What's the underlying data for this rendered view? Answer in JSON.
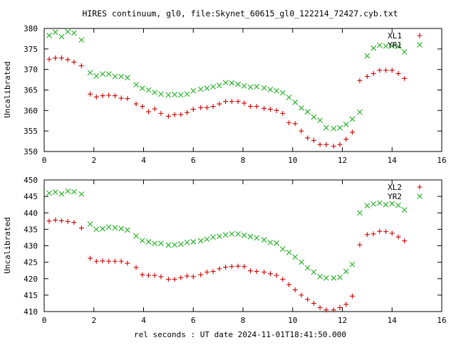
{
  "chart_data": {
    "title": "HIRES continuum, gl0, file:Skynet_60615_gl0_122214_72427.cyb.txt",
    "xlabel": "rel seconds : UT date 2024-11-01T18:41:50.000",
    "panels": [
      {
        "type": "scatter",
        "ylabel": "Uncalibrated",
        "xlim": [
          0,
          16
        ],
        "ylim": [
          350,
          380
        ],
        "xticks": [
          "0",
          "2",
          "4",
          "6",
          "8",
          "10",
          "12",
          "14",
          "16"
        ],
        "yticks": [
          "350",
          "355",
          "360",
          "365",
          "370",
          "375",
          "380"
        ],
        "legend_position": "top-right",
        "series": [
          {
            "name": "XL1",
            "marker": "plus",
            "color": "#d00000",
            "x": [
              0.2,
              0.45,
              0.7,
              0.95,
              1.2,
              1.5,
              1.85,
              2.1,
              2.35,
              2.6,
              2.85,
              3.1,
              3.35,
              3.7,
              3.95,
              4.2,
              4.45,
              4.7,
              5.0,
              5.25,
              5.5,
              5.75,
              6.0,
              6.3,
              6.55,
              6.8,
              7.05,
              7.3,
              7.55,
              7.8,
              8.05,
              8.3,
              8.55,
              8.85,
              9.1,
              9.35,
              9.6,
              9.85,
              10.1,
              10.35,
              10.6,
              10.85,
              11.1,
              11.35,
              11.65,
              11.9,
              12.15,
              12.4,
              12.7,
              13.0,
              13.25,
              13.5,
              13.75,
              14.0,
              14.25,
              14.5
            ],
            "y": [
              372.5,
              372.8,
              372.8,
              372.4,
              371.8,
              370.9,
              364.0,
              363.3,
              363.6,
              363.7,
              363.6,
              363.0,
              362.9,
              361.6,
              361.0,
              359.7,
              360.4,
              359.3,
              358.6,
              359.0,
              359.0,
              359.5,
              360.3,
              360.7,
              360.7,
              361.0,
              361.6,
              362.2,
              362.2,
              362.2,
              361.8,
              361.0,
              361.0,
              360.5,
              360.3,
              360.0,
              359.3,
              357.0,
              356.8,
              355.0,
              353.3,
              352.7,
              351.7,
              351.7,
              351.3,
              351.7,
              353.0,
              354.7,
              367.3,
              368.3,
              369.0,
              369.8,
              369.8,
              369.8,
              369.0,
              367.8
            ]
          },
          {
            "name": "YR1",
            "marker": "x",
            "color": "#20b020",
            "x": [
              0.2,
              0.45,
              0.7,
              0.95,
              1.2,
              1.5,
              1.85,
              2.1,
              2.35,
              2.6,
              2.85,
              3.1,
              3.35,
              3.7,
              3.95,
              4.2,
              4.45,
              4.7,
              5.0,
              5.25,
              5.5,
              5.75,
              6.0,
              6.3,
              6.55,
              6.8,
              7.05,
              7.3,
              7.55,
              7.8,
              8.05,
              8.3,
              8.55,
              8.85,
              9.1,
              9.35,
              9.6,
              9.85,
              10.1,
              10.35,
              10.6,
              10.85,
              11.1,
              11.35,
              11.65,
              11.9,
              12.15,
              12.4,
              12.7,
              13.0,
              13.25,
              13.5,
              13.75,
              14.0,
              14.25,
              14.5
            ],
            "y": [
              378.3,
              379.1,
              378.0,
              379.2,
              378.9,
              377.2,
              369.2,
              368.4,
              368.9,
              368.9,
              368.3,
              368.3,
              368.0,
              366.3,
              365.4,
              365.0,
              364.4,
              364.0,
              363.8,
              363.9,
              363.8,
              364.0,
              364.8,
              365.2,
              365.4,
              365.8,
              366.1,
              366.8,
              366.7,
              366.4,
              366.0,
              365.7,
              365.8,
              365.5,
              365.1,
              364.8,
              364.3,
              363.2,
              362.0,
              360.6,
              359.7,
              358.4,
              357.6,
              355.8,
              355.6,
              355.8,
              356.6,
              357.9,
              359.6,
              373.3,
              375.2,
              375.9,
              375.7,
              375.7,
              375.6,
              374.3
            ]
          }
        ]
      },
      {
        "type": "scatter",
        "ylabel": "Uncalibrated",
        "xlim": [
          0,
          16
        ],
        "ylim": [
          410,
          450
        ],
        "xticks": [
          "0",
          "2",
          "4",
          "6",
          "8",
          "10",
          "12",
          "14",
          "16"
        ],
        "yticks": [
          "410",
          "415",
          "420",
          "425",
          "430",
          "435",
          "440",
          "445",
          "450"
        ],
        "legend_position": "top-right",
        "series": [
          {
            "name": "XL2",
            "marker": "plus",
            "color": "#d00000",
            "x": [
              0.2,
              0.45,
              0.7,
              0.95,
              1.2,
              1.5,
              1.85,
              2.1,
              2.35,
              2.6,
              2.85,
              3.1,
              3.35,
              3.7,
              3.95,
              4.2,
              4.45,
              4.7,
              5.0,
              5.25,
              5.5,
              5.75,
              6.0,
              6.3,
              6.55,
              6.8,
              7.05,
              7.3,
              7.55,
              7.8,
              8.05,
              8.3,
              8.55,
              8.85,
              9.1,
              9.35,
              9.6,
              9.85,
              10.1,
              10.35,
              10.6,
              10.85,
              11.1,
              11.35,
              11.65,
              11.9,
              12.15,
              12.4,
              12.7,
              13.0,
              13.25,
              13.5,
              13.75,
              14.0,
              14.25,
              14.5
            ],
            "y": [
              437.5,
              437.8,
              437.6,
              437.4,
              437.1,
              435.4,
              426.2,
              425.3,
              425.4,
              425.3,
              425.3,
              425.3,
              424.7,
              423.4,
              421.2,
              421.0,
              421.0,
              420.6,
              419.8,
              419.8,
              420.3,
              420.8,
              420.6,
              421.2,
              422.0,
              422.2,
              423.0,
              423.5,
              423.7,
              423.8,
              423.7,
              422.4,
              422.2,
              422.0,
              421.5,
              421.0,
              419.8,
              418.2,
              416.6,
              415.0,
              413.7,
              412.5,
              411.2,
              410.5,
              410.5,
              411.2,
              412.2,
              414.7,
              430.3,
              433.4,
              433.6,
              434.4,
              434.3,
              433.8,
              432.7,
              431.5
            ]
          },
          {
            "name": "YR2",
            "marker": "x",
            "color": "#20b020",
            "x": [
              0.2,
              0.45,
              0.7,
              0.95,
              1.2,
              1.5,
              1.85,
              2.1,
              2.35,
              2.6,
              2.85,
              3.1,
              3.35,
              3.7,
              3.95,
              4.2,
              4.45,
              4.7,
              5.0,
              5.25,
              5.5,
              5.75,
              6.0,
              6.3,
              6.55,
              6.8,
              7.05,
              7.3,
              7.55,
              7.8,
              8.05,
              8.3,
              8.55,
              8.85,
              9.1,
              9.35,
              9.6,
              9.85,
              10.1,
              10.35,
              10.6,
              10.85,
              11.1,
              11.35,
              11.65,
              11.9,
              12.15,
              12.4,
              12.7,
              13.0,
              13.25,
              13.5,
              13.75,
              14.0,
              14.25,
              14.5
            ],
            "y": [
              446.0,
              446.3,
              445.8,
              446.6,
              446.4,
              445.7,
              436.6,
              435.0,
              435.2,
              435.7,
              435.5,
              435.2,
              434.8,
              433.0,
              431.6,
              431.2,
              430.7,
              430.7,
              430.2,
              430.3,
              430.5,
              431.0,
              431.2,
              431.5,
              432.0,
              432.6,
              432.9,
              433.3,
              433.6,
              433.6,
              433.2,
              432.8,
              432.4,
              431.8,
              431.0,
              430.8,
              429.0,
              428.0,
              426.6,
              425.0,
              423.3,
              422.0,
              420.6,
              420.2,
              420.2,
              420.4,
              422.2,
              424.3,
              440.0,
              442.2,
              442.7,
              443.0,
              442.5,
              442.8,
              442.3,
              440.9
            ]
          }
        ]
      }
    ]
  }
}
